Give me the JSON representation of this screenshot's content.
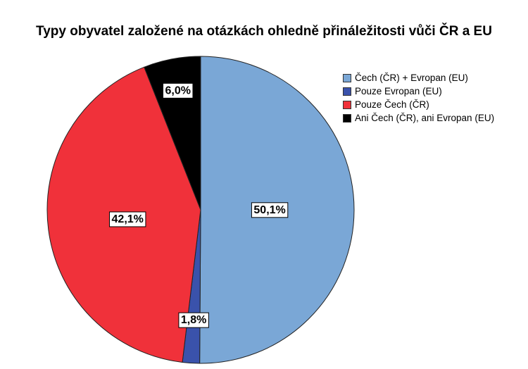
{
  "chart_data": {
    "type": "pie",
    "title": "Typy obyvatel založené na otázkách ohledně přináležitosti vůči ČR a EU",
    "slices": [
      {
        "label": "Čech (ČR) + Evropan (EU)",
        "value": 50.1,
        "value_label": "50,1%",
        "color": "#7aa7d6"
      },
      {
        "label": "Pouze Evropan (EU)",
        "value": 1.8,
        "value_label": "1,8%",
        "color": "#3a52ab"
      },
      {
        "label": "Pouze Čech (ČR)",
        "value": 42.1,
        "value_label": "42,1%",
        "color": "#f0313a"
      },
      {
        "label": "Ani Čech (ČR), ani Evropan (EU)",
        "value": 6.0,
        "value_label": "6,0%",
        "color": "#000000"
      }
    ],
    "legend_position": "top-right"
  }
}
